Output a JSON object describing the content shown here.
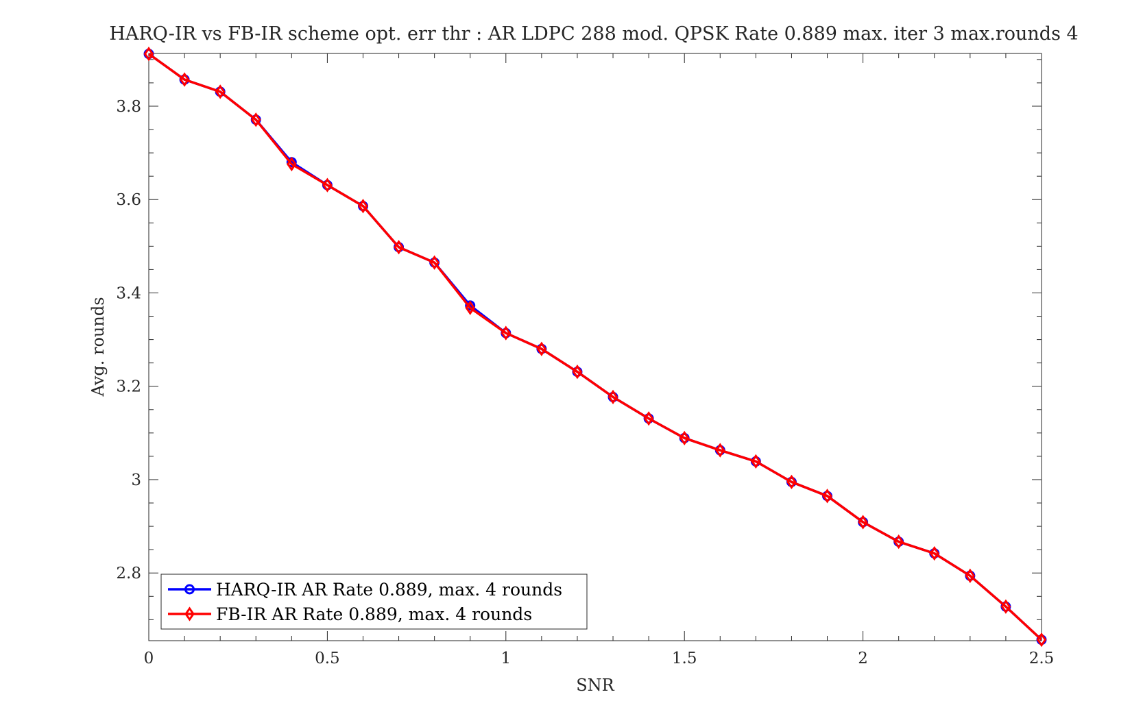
{
  "chart_data": {
    "type": "line",
    "title": "HARQ-IR vs FB-IR scheme opt. err thr : AR LDPC 288 mod. QPSK Rate 0.889 max. iter 3 max.rounds 4",
    "xlabel": "SNR",
    "ylabel": "Avg. rounds",
    "xlim": [
      0,
      2.5
    ],
    "ylim": [
      2.655,
      3.913
    ],
    "xticks": [
      0,
      0.5,
      1,
      1.5,
      2,
      2.5
    ],
    "xtick_labels": [
      "0",
      "0.5",
      "1",
      "1.5",
      "2",
      "2.5"
    ],
    "yticks": [
      2.8,
      3,
      3.2,
      3.4,
      3.6,
      3.8
    ],
    "ytick_labels": [
      "2.8",
      "3",
      "3.2",
      "3.4",
      "3.6",
      "3.8"
    ],
    "scale": "linear",
    "grid": false,
    "legend_position": "bottom-left",
    "x": [
      0,
      0.1,
      0.2,
      0.3,
      0.4,
      0.5,
      0.6,
      0.7,
      0.8,
      0.9,
      1.0,
      1.1,
      1.2,
      1.3,
      1.4,
      1.5,
      1.6,
      1.7,
      1.8,
      1.9,
      2.0,
      2.1,
      2.2,
      2.3,
      2.4,
      2.5
    ],
    "series": [
      {
        "name": "HARQ-IR AR Rate 0.889, max. 4 rounds",
        "color": "#0000ff",
        "marker": "circle",
        "values": [
          3.912,
          3.857,
          3.831,
          3.771,
          3.68,
          3.631,
          3.586,
          3.498,
          3.465,
          3.373,
          3.314,
          3.28,
          3.231,
          3.177,
          3.131,
          3.089,
          3.063,
          3.039,
          2.995,
          2.965,
          2.909,
          2.867,
          2.842,
          2.794,
          2.728,
          2.657
        ]
      },
      {
        "name": "FB-IR AR Rate 0.889, max. 4 rounds",
        "color": "#ff0000",
        "marker": "diamond",
        "values": [
          3.912,
          3.857,
          3.831,
          3.771,
          3.676,
          3.631,
          3.586,
          3.498,
          3.465,
          3.368,
          3.314,
          3.28,
          3.231,
          3.177,
          3.131,
          3.089,
          3.063,
          3.039,
          2.995,
          2.965,
          2.909,
          2.867,
          2.842,
          2.794,
          2.728,
          2.657
        ]
      }
    ]
  }
}
